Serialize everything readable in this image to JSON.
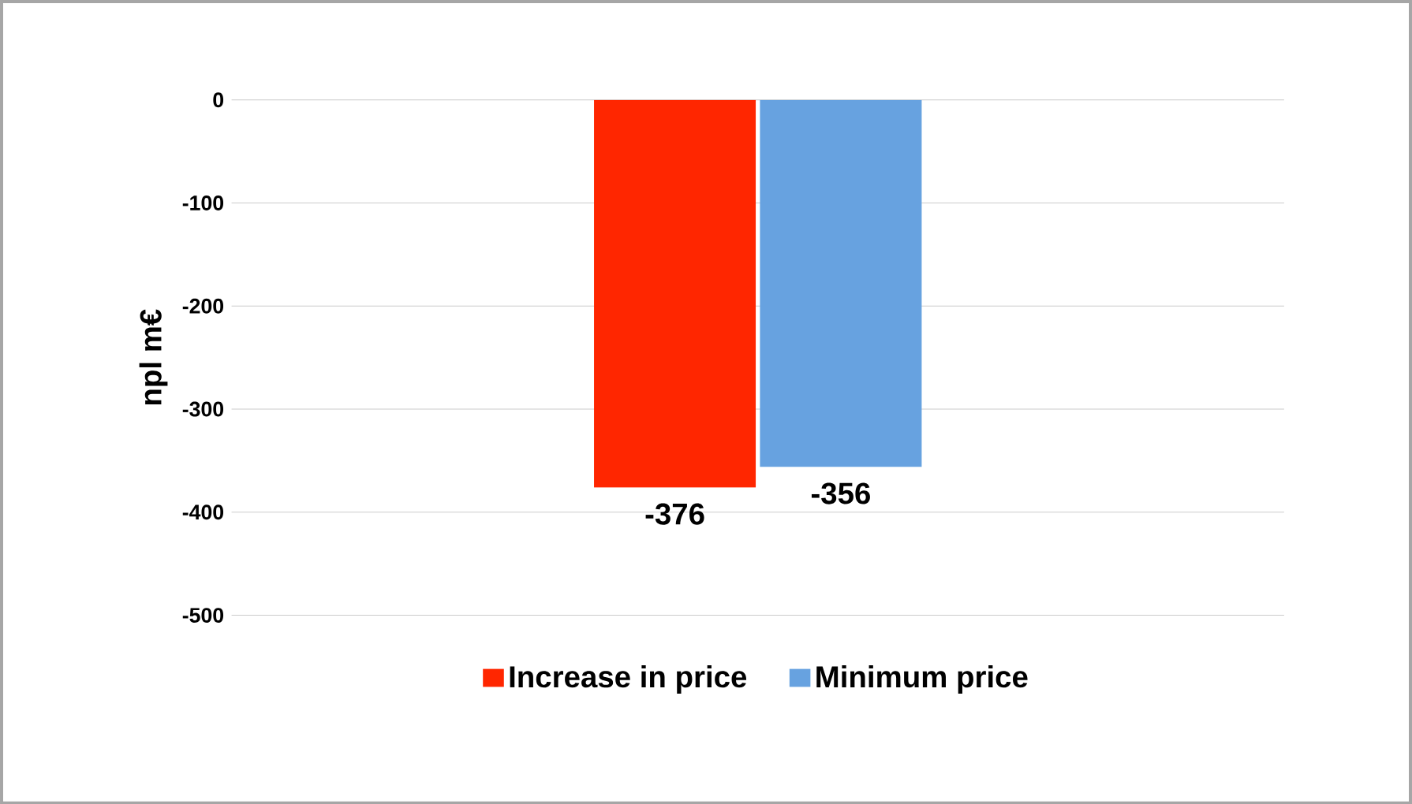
{
  "chart_data": {
    "type": "bar",
    "ylabel": "npl m€",
    "categories": [
      null
    ],
    "series": [
      {
        "name": "Increase in price",
        "color": "#ff2600",
        "values": [
          -376
        ]
      },
      {
        "name": "Minimum price",
        "color": "#67a2e0",
        "values": [
          -356
        ]
      }
    ],
    "ylim": [
      -500,
      0
    ],
    "yticks": [
      -500,
      -400,
      -300,
      -200,
      -100,
      0
    ],
    "grid": "y",
    "legend": "bottom",
    "data_labels": true
  }
}
